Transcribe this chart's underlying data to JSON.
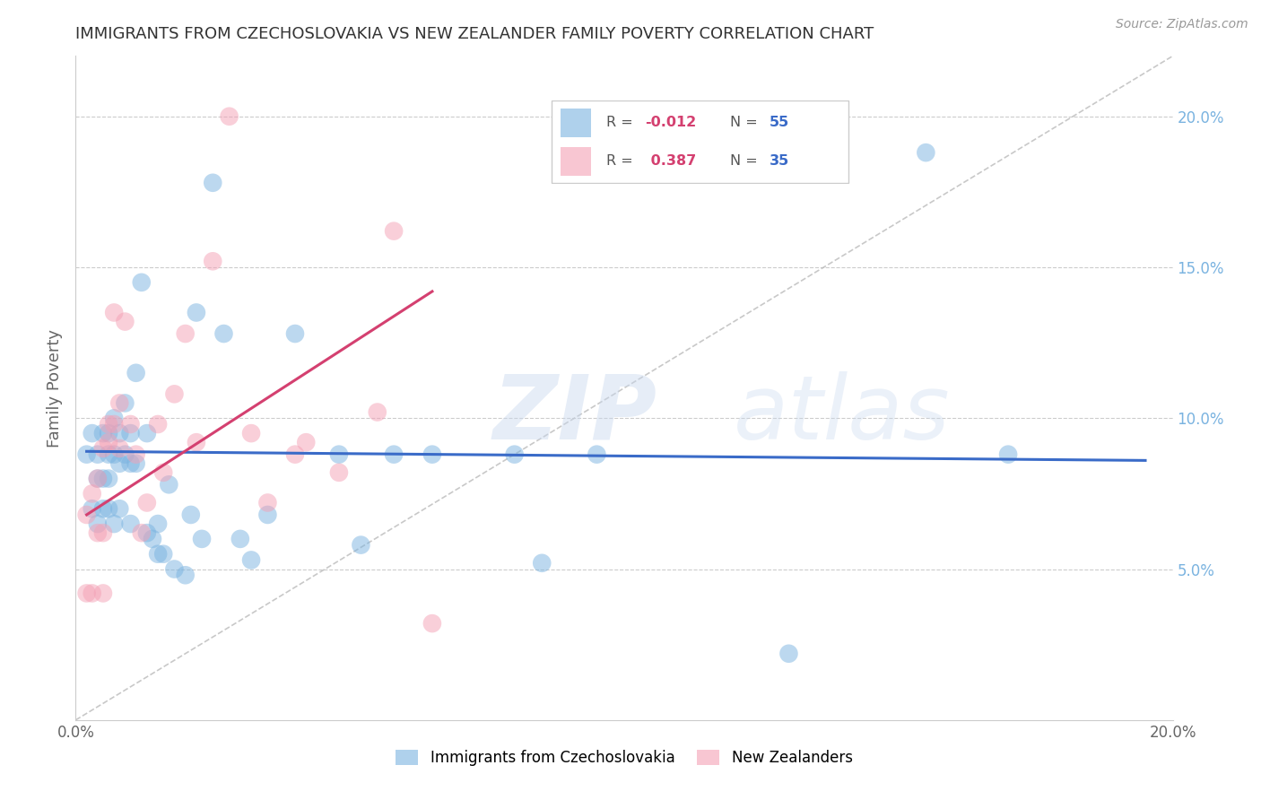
{
  "title": "IMMIGRANTS FROM CZECHOSLOVAKIA VS NEW ZEALANDER FAMILY POVERTY CORRELATION CHART",
  "source": "Source: ZipAtlas.com",
  "ylabel": "Family Poverty",
  "xlim": [
    0.0,
    0.2
  ],
  "ylim": [
    0.0,
    0.22
  ],
  "blue_color": "#7ab3e0",
  "pink_color": "#f4a0b5",
  "trendline_blue_color": "#3a6bc8",
  "trendline_pink_color": "#d44070",
  "watermark": "ZIPatlas",
  "blue_scatter_x": [
    0.002,
    0.003,
    0.003,
    0.004,
    0.004,
    0.004,
    0.005,
    0.005,
    0.005,
    0.006,
    0.006,
    0.006,
    0.006,
    0.007,
    0.007,
    0.007,
    0.008,
    0.008,
    0.008,
    0.009,
    0.009,
    0.01,
    0.01,
    0.01,
    0.011,
    0.011,
    0.012,
    0.013,
    0.013,
    0.014,
    0.015,
    0.015,
    0.016,
    0.017,
    0.018,
    0.02,
    0.021,
    0.022,
    0.023,
    0.025,
    0.027,
    0.03,
    0.032,
    0.035,
    0.04,
    0.048,
    0.052,
    0.058,
    0.065,
    0.08,
    0.085,
    0.095,
    0.13,
    0.155,
    0.17
  ],
  "blue_scatter_y": [
    0.088,
    0.095,
    0.07,
    0.088,
    0.08,
    0.065,
    0.095,
    0.08,
    0.07,
    0.095,
    0.088,
    0.08,
    0.07,
    0.1,
    0.088,
    0.065,
    0.095,
    0.085,
    0.07,
    0.105,
    0.088,
    0.095,
    0.085,
    0.065,
    0.115,
    0.085,
    0.145,
    0.095,
    0.062,
    0.06,
    0.065,
    0.055,
    0.055,
    0.078,
    0.05,
    0.048,
    0.068,
    0.135,
    0.06,
    0.178,
    0.128,
    0.06,
    0.053,
    0.068,
    0.128,
    0.088,
    0.058,
    0.088,
    0.088,
    0.088,
    0.052,
    0.088,
    0.022,
    0.188,
    0.088
  ],
  "pink_scatter_x": [
    0.002,
    0.002,
    0.003,
    0.003,
    0.004,
    0.004,
    0.005,
    0.005,
    0.005,
    0.006,
    0.006,
    0.007,
    0.007,
    0.008,
    0.008,
    0.009,
    0.01,
    0.011,
    0.012,
    0.013,
    0.015,
    0.016,
    0.018,
    0.02,
    0.022,
    0.025,
    0.028,
    0.032,
    0.035,
    0.04,
    0.042,
    0.048,
    0.055,
    0.058,
    0.065
  ],
  "pink_scatter_y": [
    0.068,
    0.042,
    0.042,
    0.075,
    0.08,
    0.062,
    0.09,
    0.062,
    0.042,
    0.092,
    0.098,
    0.135,
    0.098,
    0.09,
    0.105,
    0.132,
    0.098,
    0.088,
    0.062,
    0.072,
    0.098,
    0.082,
    0.108,
    0.128,
    0.092,
    0.152,
    0.2,
    0.095,
    0.072,
    0.088,
    0.092,
    0.082,
    0.102,
    0.162,
    0.032
  ],
  "blue_trend_x0": 0.002,
  "blue_trend_x1": 0.195,
  "blue_trend_y0": 0.089,
  "blue_trend_y1": 0.086,
  "pink_trend_x0": 0.002,
  "pink_trend_x1": 0.065,
  "pink_trend_y0": 0.068,
  "pink_trend_y1": 0.142
}
